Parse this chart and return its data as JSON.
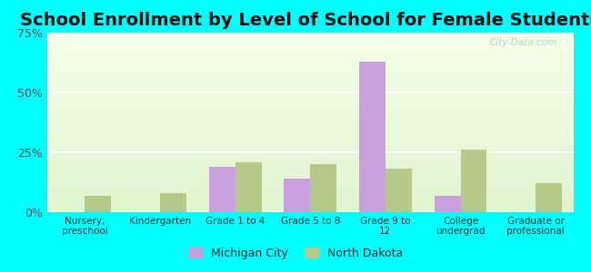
{
  "title": "School Enrollment by Level of School for Female Students",
  "categories": [
    "Nursery,\npreschool",
    "Kindergarten",
    "Grade 1 to 4",
    "Grade 5 to 8",
    "Grade 9 to\n12",
    "College\nundergrad",
    "Graduate or\nprofessional"
  ],
  "michigan_city": [
    0,
    0,
    19,
    14,
    63,
    7,
    0
  ],
  "north_dakota": [
    7,
    8,
    21,
    20,
    18,
    26,
    12
  ],
  "michigan_city_color": "#c9a0dc",
  "north_dakota_color": "#b5c98a",
  "ylim": [
    0,
    75
  ],
  "yticks": [
    0,
    25,
    50,
    75
  ],
  "yticklabels": [
    "0%",
    "25%",
    "50%",
    "75%"
  ],
  "background_color": "#00ffff",
  "title_fontsize": 14,
  "legend_labels": [
    "Michigan City",
    "North Dakota"
  ],
  "bar_width": 0.35
}
